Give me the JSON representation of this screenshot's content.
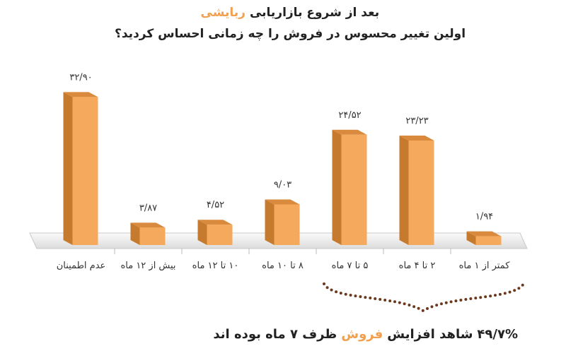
{
  "chart_data": {
    "type": "bar",
    "title": "بعد از شروع بازاریابی",
    "title_highlight": "ربایشی",
    "subtitle": "اولین تغییر محسوس در فروش را چه زمانی احساس کردید؟",
    "categories": [
      "عدم اطمینان",
      "بیش از ۱۲ ماه",
      "۱۰ تا ۱۲ ماه",
      "۸ تا ۱۰ ماه",
      "۵ تا ۷ ماه",
      "۲ تا ۴ ماه",
      "کمتر از ۱ ماه"
    ],
    "values": [
      32.9,
      3.87,
      4.52,
      9.03,
      24.52,
      23.23,
      1.94
    ],
    "value_labels": [
      "۳۲/۹۰",
      "۳/۸۷",
      "۴/۵۲",
      "۹/۰۳",
      "۲۴/۵۲",
      "۲۳/۲۳",
      "۱/۹۴"
    ],
    "color": "#f4a95c",
    "highlight_color": "#f0a050",
    "ylim": [
      0,
      35
    ],
    "annotation": [
      "۴۹/۷%",
      "شاهد افزایش",
      "فروش",
      "ظرف ۷ ماه بوده اند"
    ]
  }
}
